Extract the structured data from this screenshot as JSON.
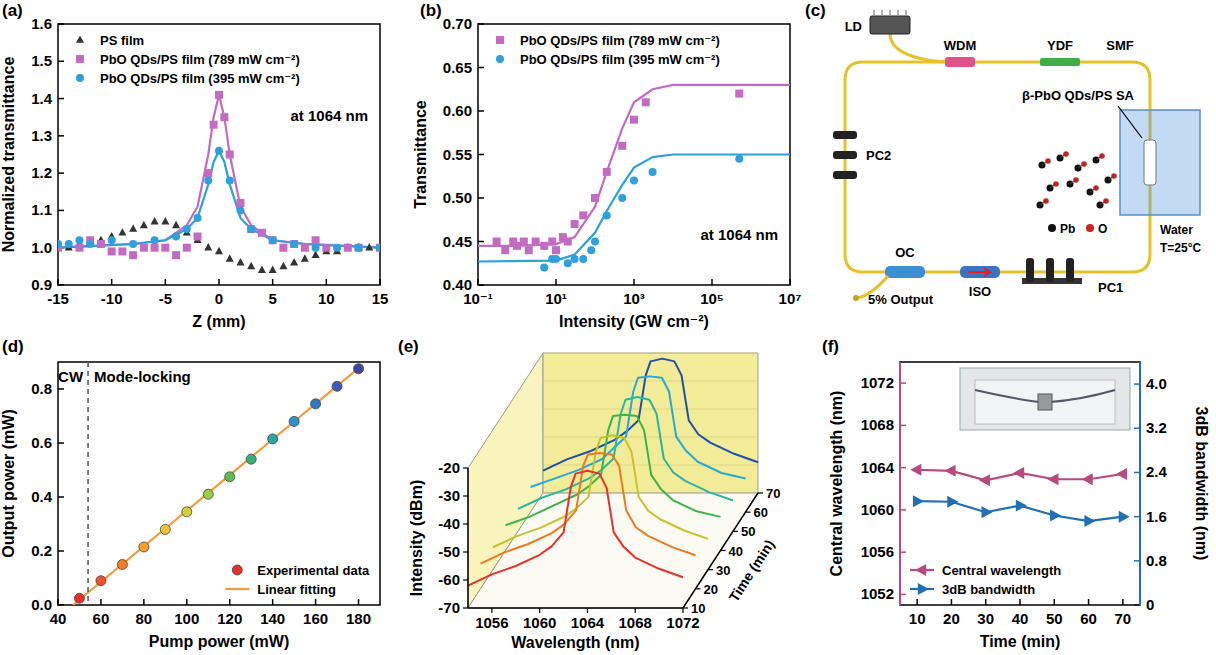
{
  "chart_data": [
    {
      "panel": "(a)",
      "type": "scatter",
      "x_label": "Z (mm)",
      "y_label": "Normalized transmittance",
      "annotation": "at 1064 nm",
      "xlim": [
        -15,
        15
      ],
      "xticks": [
        -15,
        -10,
        -5,
        0,
        5,
        10,
        15
      ],
      "ylim": [
        0.9,
        1.6
      ],
      "yticks": [
        0.9,
        {
          "value": 1,
          "label": "1.0"
        },
        1.1,
        1.2,
        1.3,
        1.4,
        1.5,
        1.6
      ],
      "legend": "upper left",
      "series": [
        {
          "name": "PS film",
          "color": "#333333",
          "marker": "triangle",
          "x": [
            -15,
            -14,
            -13,
            -12,
            -11,
            -10,
            -9,
            -8,
            -7,
            -6,
            -5,
            -4,
            -3,
            -2,
            -1,
            0,
            1,
            2,
            3,
            4,
            5,
            6,
            7,
            8,
            9,
            10,
            11,
            12,
            13,
            14,
            15
          ],
          "values": [
            1.0,
            1.0,
            1.01,
            1.01,
            1.02,
            1.03,
            1.04,
            1.05,
            1.06,
            1.07,
            1.07,
            1.06,
            1.04,
            1.02,
            1.0,
            0.99,
            0.97,
            0.96,
            0.95,
            0.94,
            0.94,
            0.95,
            0.96,
            0.97,
            0.98,
            0.99,
            0.99,
            1.0,
            1.0,
            1.0,
            1.0
          ]
        },
        {
          "name": "PbO QDs/PS film (789 mW cm⁻²)",
          "color": "#c36bc3",
          "marker": "square",
          "x": [
            -15,
            -13,
            -12,
            -11,
            -10,
            -9,
            -8,
            -7,
            -6,
            -5,
            -4,
            -3,
            -2,
            -1,
            -0.5,
            0,
            0.5,
            1,
            2,
            3,
            4,
            5,
            6,
            7,
            8,
            9,
            10,
            12,
            13,
            15
          ],
          "values": [
            1.0,
            1.0,
            1.02,
            1.01,
            0.99,
            0.99,
            0.98,
            1.0,
            1.0,
            1.0,
            0.98,
            1.0,
            1.03,
            1.2,
            1.33,
            1.41,
            1.35,
            1.25,
            1.12,
            1.05,
            1.04,
            1.02,
            1.0,
            1.01,
            1.0,
            1.02,
            1.0,
            1.0,
            1.0,
            1.0
          ]
        },
        {
          "name": "PbO QDs/PS film (395 mW cm⁻²)",
          "color": "#2e9fdf",
          "marker": "circle",
          "x": [
            -15,
            -14,
            -13,
            -12,
            -10,
            -8,
            -6,
            -4,
            -3,
            -2,
            -1,
            0,
            1,
            2,
            3,
            5,
            7,
            9,
            11,
            13,
            15
          ],
          "values": [
            1.01,
            1.01,
            1.02,
            1.01,
            1.02,
            1.01,
            1.02,
            1.03,
            1.05,
            1.08,
            1.18,
            1.26,
            1.18,
            1.1,
            1.05,
            1.02,
            1.01,
            1.0,
            1.0,
            1.0,
            1.0
          ]
        },
        {
          "type": "line",
          "color": "#c36bc3",
          "x": [
            -15,
            -8,
            -5,
            -3,
            -2,
            -1,
            -0.5,
            0,
            0.5,
            1,
            2,
            3,
            5,
            8,
            15
          ],
          "values": [
            1.0,
            1.01,
            1.02,
            1.06,
            1.11,
            1.25,
            1.35,
            1.41,
            1.35,
            1.25,
            1.11,
            1.06,
            1.02,
            1.01,
            1.0
          ]
        },
        {
          "type": "line",
          "color": "#2e9fdf",
          "x": [
            -15,
            -8,
            -5,
            -3,
            -2,
            -1,
            -0.5,
            0,
            0.5,
            1,
            2,
            3,
            5,
            8,
            15
          ],
          "values": [
            1.0,
            1.01,
            1.02,
            1.05,
            1.08,
            1.17,
            1.23,
            1.26,
            1.23,
            1.17,
            1.08,
            1.05,
            1.02,
            1.01,
            1.0
          ]
        }
      ]
    },
    {
      "panel": "(b)",
      "type": "scatter",
      "x_label": "Intensity (GW cm⁻²)",
      "y_label": "Transmittance",
      "annotation": "at 1064 nm",
      "log": "x",
      "xlim": [
        0.1,
        10000000
      ],
      "xticks": [
        {
          "value": 0.1,
          "label": "10⁻¹"
        },
        {
          "value": 10,
          "label": "10¹"
        },
        {
          "value": 1000,
          "label": "10³"
        },
        {
          "value": 100000,
          "label": "10⁵"
        },
        {
          "value": 10000000,
          "label": "10⁷"
        }
      ],
      "ylim": [
        0.4,
        0.7
      ],
      "yticks": [
        {
          "value": 0.4,
          "label": "0.40"
        },
        0.45,
        {
          "value": 0.5,
          "label": "0.50"
        },
        0.55,
        {
          "value": 0.6,
          "label": "0.60"
        },
        0.65,
        {
          "value": 0.7,
          "label": "0.70"
        }
      ],
      "legend": "upper left",
      "series": [
        {
          "name": "PbO QDs/PS film (789 mW cm⁻²)",
          "color": "#c36bc3",
          "marker": "square",
          "x": [
            0.3,
            0.5,
            0.8,
            1,
            1.5,
            2,
            3,
            5,
            8,
            10,
            15,
            20,
            30,
            50,
            100,
            200,
            500,
            1000,
            2000,
            500000
          ],
          "values": [
            0.45,
            0.44,
            0.45,
            0.445,
            0.45,
            0.44,
            0.45,
            0.445,
            0.45,
            0.44,
            0.455,
            0.45,
            0.47,
            0.48,
            0.5,
            0.53,
            0.56,
            0.59,
            0.61,
            0.62
          ]
        },
        {
          "name": "PbO QDs/PS film (395 mW cm⁻²)",
          "color": "#2e9fdf",
          "marker": "circle",
          "x": [
            5,
            8,
            10,
            20,
            30,
            50,
            80,
            100,
            200,
            500,
            1000,
            3000,
            500000
          ],
          "values": [
            0.42,
            0.43,
            0.43,
            0.425,
            0.43,
            0.43,
            0.44,
            0.45,
            0.48,
            0.5,
            0.52,
            0.53,
            0.545
          ]
        },
        {
          "type": "line",
          "color": "#c36bc3",
          "x": [
            0.1,
            1,
            10,
            30,
            100,
            200,
            500,
            1000,
            3000,
            10000,
            100000,
            10000000
          ],
          "values": [
            0.445,
            0.445,
            0.447,
            0.455,
            0.49,
            0.53,
            0.58,
            0.61,
            0.625,
            0.63,
            0.63,
            0.63
          ]
        },
        {
          "type": "line",
          "color": "#2e9fdf",
          "x": [
            0.1,
            10,
            30,
            100,
            200,
            500,
            1000,
            3000,
            10000,
            10000000
          ],
          "values": [
            0.427,
            0.428,
            0.435,
            0.46,
            0.485,
            0.515,
            0.535,
            0.547,
            0.55,
            0.55
          ]
        }
      ]
    },
    {
      "panel": "(d)",
      "type": "scatter",
      "x_label": "Pump power (mW)",
      "y_label": "Output power (mW)",
      "annotations": [
        "CW",
        "Mode-locking"
      ],
      "threshold": 54,
      "xlim": [
        40,
        190
      ],
      "xticks": [
        40,
        60,
        80,
        100,
        120,
        140,
        160,
        180
      ],
      "ylim": [
        0,
        0.9
      ],
      "yticks": [
        {
          "value": 0,
          "label": "0.0"
        },
        0.2,
        0.4,
        0.6,
        0.8
      ],
      "legend": "lower right",
      "series": [
        {
          "name": "Experimental data",
          "marker": "circle",
          "colors": [
            "#e8302a",
            "#f0522a",
            "#f57a2a",
            "#f7a02c",
            "#f2c632",
            "#cfd23a",
            "#9ccc45",
            "#5cbf55",
            "#35b07a",
            "#2aa6a0",
            "#2a95c0",
            "#3278c8",
            "#3b5cb8",
            "#3e46a0"
          ],
          "x": [
            50,
            60,
            70,
            80,
            90,
            100,
            110,
            120,
            130,
            140,
            150,
            160,
            170,
            180
          ],
          "values": [
            0.025,
            0.09,
            0.15,
            0.215,
            0.28,
            0.345,
            0.41,
            0.475,
            0.54,
            0.615,
            0.68,
            0.745,
            0.81,
            0.875
          ]
        },
        {
          "name": "Linear fitting",
          "type": "line",
          "color": "#f39c3c",
          "x": [
            47,
            182
          ],
          "values": [
            0,
            0.89
          ]
        }
      ]
    },
    {
      "panel": "(e)",
      "type": "line",
      "x_label": "Wavelength (nm)",
      "y_label": "Intensity (dBm)",
      "z_label": "Time (min)",
      "x": [
        1054,
        1056,
        1058,
        1060,
        1061,
        1062,
        1062.6,
        1063,
        1064,
        1065,
        1065.6,
        1066.2,
        1067,
        1068,
        1070,
        1072
      ],
      "xlim": [
        1054,
        1072
      ],
      "xticks": [
        1056,
        1060,
        1064,
        1068,
        1072
      ],
      "ylim": [
        -70,
        -20
      ],
      "yticks": [
        -70,
        -60,
        -50,
        -40,
        -30,
        -20
      ],
      "zlim": [
        10,
        70
      ],
      "zticks": [
        10,
        20,
        30,
        40,
        50,
        60,
        70
      ],
      "series": [
        {
          "time": 10,
          "color": "#e8302a",
          "values": [
            -62,
            -58,
            -55,
            -51,
            -48,
            -43,
            -27,
            -22,
            -21,
            -22,
            -27,
            -43,
            -48,
            -52,
            -56,
            -59
          ]
        },
        {
          "time": 20,
          "color": "#f07a20",
          "values": [
            -61,
            -57,
            -54,
            -50,
            -47,
            -42,
            -26,
            -22,
            -21.5,
            -22,
            -26,
            -42,
            -48,
            -51,
            -55,
            -58
          ]
        },
        {
          "time": 30,
          "color": "#c9c22a",
          "values": [
            -62,
            -58,
            -55,
            -51,
            -48,
            -44,
            -28,
            -23,
            -22,
            -23,
            -28,
            -44,
            -49,
            -52,
            -56,
            -59
          ]
        },
        {
          "time": 40,
          "color": "#3bb44a",
          "values": [
            -61,
            -58,
            -54,
            -50,
            -47,
            -43,
            -27,
            -22,
            -21.5,
            -22,
            -27,
            -43,
            -48,
            -52,
            -56,
            -58
          ]
        },
        {
          "time": 50,
          "color": "#2bb5a0",
          "values": [
            -62,
            -58,
            -55,
            -51,
            -48,
            -44,
            -28,
            -23,
            -22,
            -23,
            -28,
            -44,
            -49,
            -52,
            -56,
            -59
          ]
        },
        {
          "time": 60,
          "color": "#26a8d8",
          "values": [
            -61,
            -58,
            -55,
            -51,
            -47,
            -43,
            -27,
            -22,
            -21.5,
            -22,
            -27,
            -43,
            -48,
            -52,
            -56,
            -58
          ]
        },
        {
          "time": 70,
          "color": "#1f4fa8",
          "values": [
            -62,
            -58,
            -55,
            -51,
            -48,
            -44,
            -28,
            -23,
            -22,
            -23,
            -28,
            -44,
            -49,
            -52,
            -56,
            -59
          ]
        }
      ]
    },
    {
      "panel": "(f)",
      "type": "line",
      "x_label": "Time (min)",
      "y_label": "Central wavelength (nm)",
      "y2_label": "3dB bandwidth (nm)",
      "x": [
        10,
        20,
        30,
        40,
        50,
        60,
        70
      ],
      "xlim": [
        5,
        75
      ],
      "xticks": [
        10,
        20,
        30,
        40,
        50,
        60,
        70
      ],
      "ylim": [
        1051,
        1074
      ],
      "yticks": [
        1052,
        1056,
        1060,
        1064,
        1068,
        1072
      ],
      "y2lim": [
        0,
        4.4
      ],
      "y2ticks": [
        0,
        0.8,
        1.6,
        2.4,
        3.2,
        {
          "value": 4,
          "label": "4.0"
        }
      ],
      "legend": "lower left",
      "series": [
        {
          "name": "Central wavelength",
          "color": "#b8487e",
          "marker": "triangle-left",
          "values": [
            1063.8,
            1063.7,
            1062.8,
            1063.5,
            1062.9,
            1062.9,
            1063.4
          ]
        },
        {
          "name": "3dB bandwidth",
          "color": "#1f6fb4",
          "marker": "triangle-right",
          "axis": "y2",
          "values": [
            1.88,
            1.87,
            1.68,
            1.8,
            1.62,
            1.52,
            1.6
          ]
        }
      ]
    }
  ],
  "diagram": {
    "panel": "(c)",
    "components": [
      "LD",
      "WDM",
      "YDF",
      "SMF",
      "β-PbO QDs/PS SA",
      "Water",
      "T=25°C",
      "PC1",
      "ISO",
      "OC",
      "5% Output",
      "PC2"
    ],
    "atoms": [
      "Pb",
      "O"
    ]
  }
}
